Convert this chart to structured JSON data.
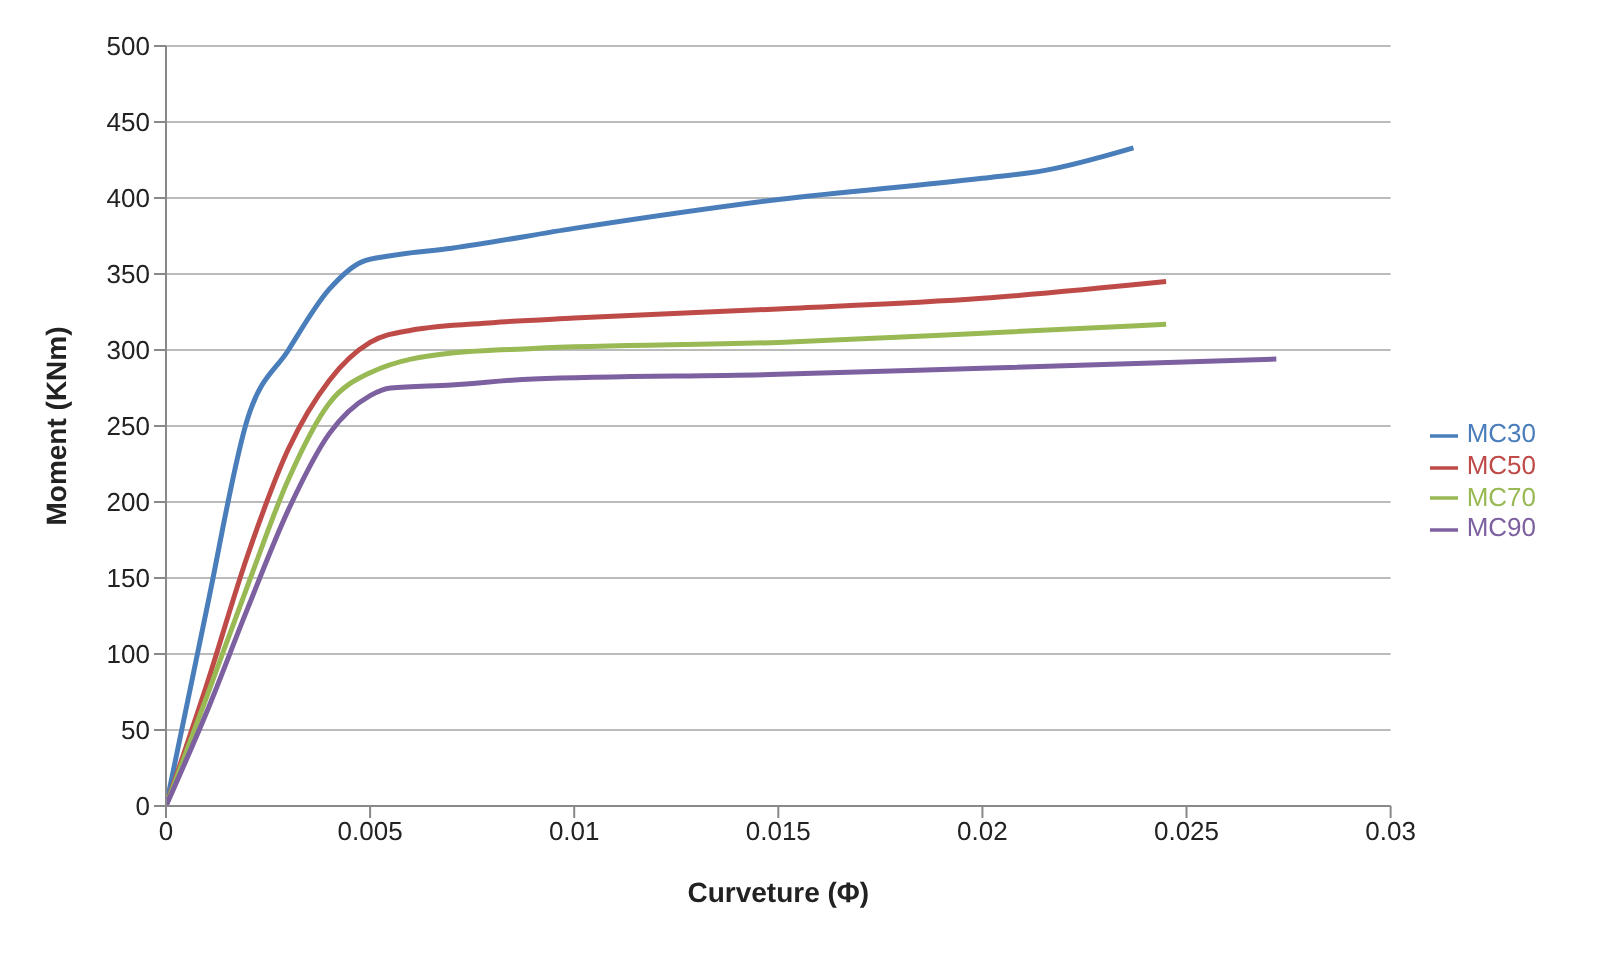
{
  "chart_data": {
    "type": "line",
    "xlabel": "Curveture (Φ)",
    "ylabel": "Moment (KNm)",
    "xlim": [
      0,
      0.03
    ],
    "xticks": [
      0,
      0.005,
      0.01,
      0.015,
      0.02,
      0.025,
      0.03
    ],
    "ylim": [
      0,
      500
    ],
    "yticks": [
      0,
      50,
      100,
      150,
      200,
      250,
      300,
      350,
      400,
      450,
      500
    ],
    "grid": "y",
    "legend": "right",
    "marker": "none",
    "line_style": "solid",
    "series": [
      {
        "name": "MC30",
        "color": "#4a7ebb",
        "x": [
          0,
          0.001,
          0.002,
          0.003,
          0.004,
          0.0048,
          0.0055,
          0.007,
          0.01,
          0.015,
          0.02,
          0.0215,
          0.0237
        ],
        "values": [
          0,
          130,
          255,
          300,
          340,
          358,
          362,
          367,
          380,
          399,
          413,
          418,
          433
        ]
      },
      {
        "name": "MC50",
        "color": "#be4b48",
        "x": [
          0,
          0.001,
          0.002,
          0.003,
          0.004,
          0.005,
          0.006,
          0.008,
          0.01,
          0.015,
          0.02,
          0.0245
        ],
        "values": [
          0,
          80,
          165,
          235,
          280,
          305,
          313,
          318,
          321,
          327,
          334,
          345
        ]
      },
      {
        "name": "MC70",
        "color": "#98b954",
        "x": [
          0,
          0.001,
          0.002,
          0.003,
          0.004,
          0.005,
          0.007,
          0.009,
          0.015,
          0.02,
          0.0245
        ],
        "values": [
          0,
          72,
          145,
          215,
          265,
          285,
          298,
          301,
          305,
          311,
          317
        ]
      },
      {
        "name": "MC90",
        "color": "#7d60a0",
        "x": [
          0,
          0.001,
          0.002,
          0.003,
          0.004,
          0.005,
          0.0055,
          0.007,
          0.009,
          0.015,
          0.02,
          0.0272
        ],
        "values": [
          0,
          62,
          130,
          195,
          245,
          270,
          275,
          277,
          281,
          284,
          288,
          294
        ]
      }
    ]
  }
}
